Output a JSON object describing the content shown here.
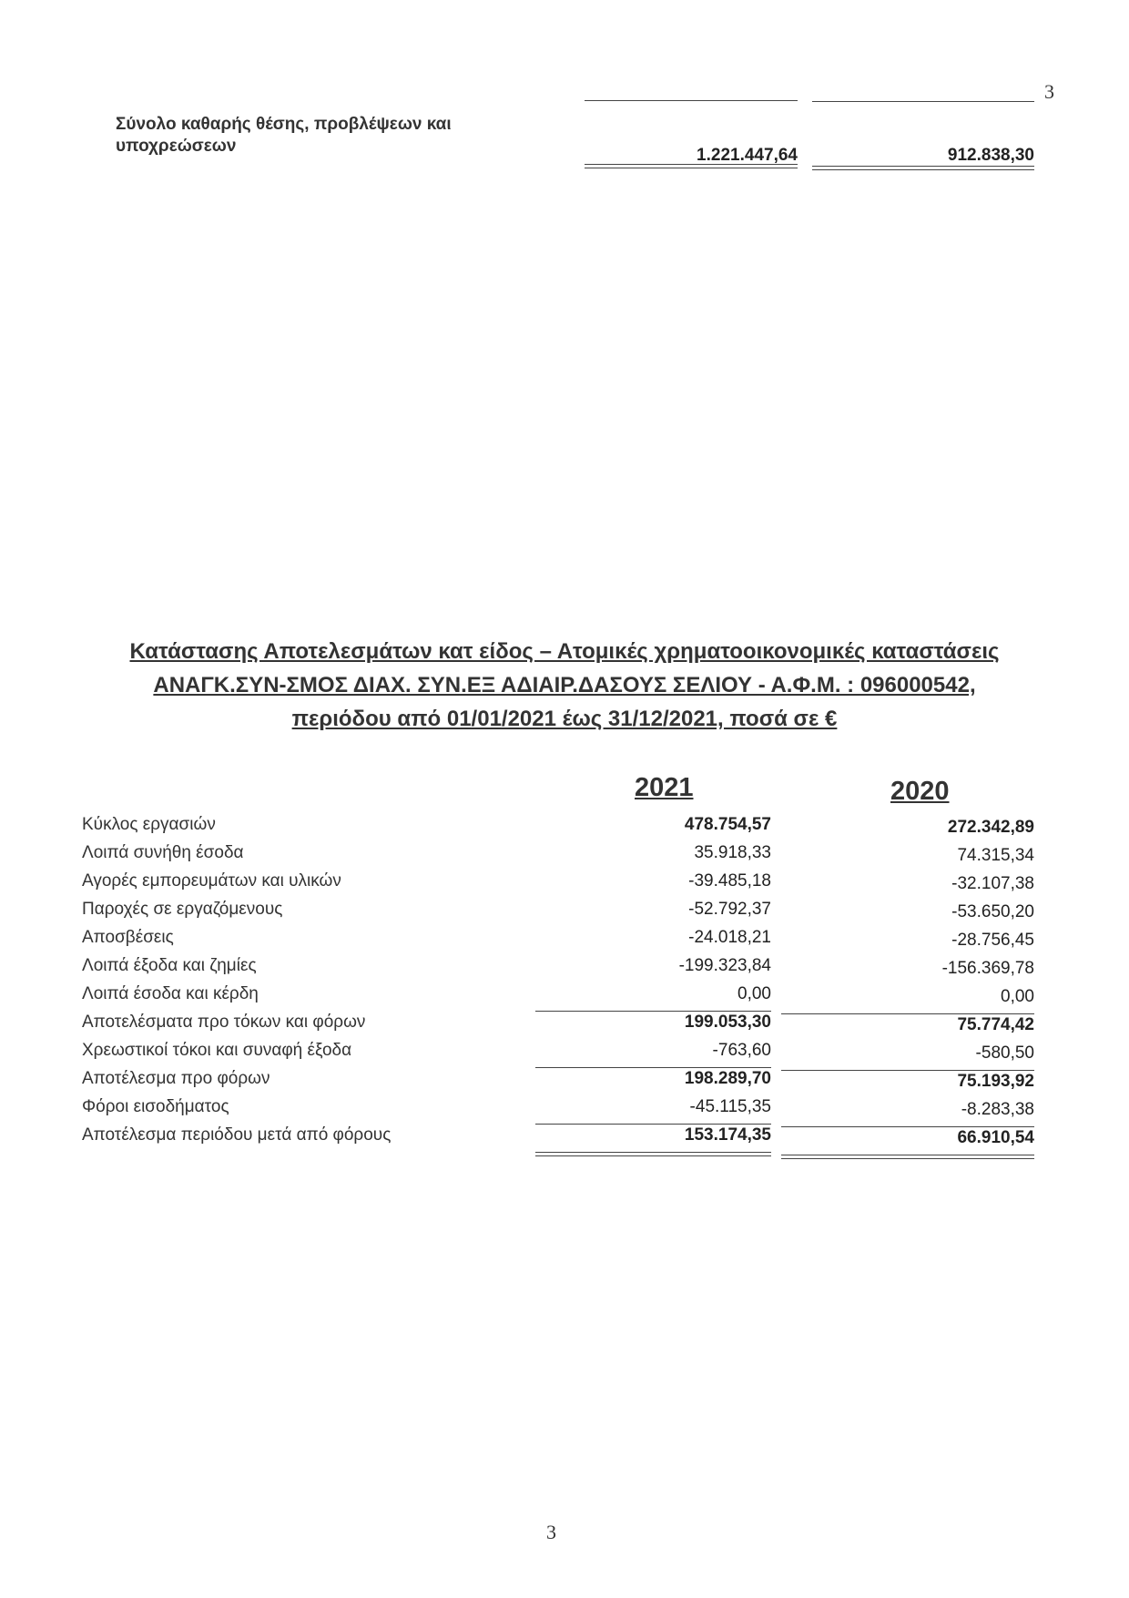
{
  "page_number_top": "3",
  "page_number_bottom": "3",
  "balance_total": {
    "label_line1": "Σύνολο καθαρής θέσης, προβλέψεων και",
    "label_line2": "υποχρεώσεων",
    "value_2021": "1.221.447,64",
    "value_2020": "912.838,30"
  },
  "title": {
    "line1": "Κατάστασης Αποτελεσμάτων κατ είδος – Ατομικές χρηματοοικονομικές καταστάσεις",
    "line2": "ΑΝΑΓΚ.ΣΥΝ-ΣΜΟΣ ΔΙΑΧ. ΣΥΝ.ΕΞ ΑΔΙΑΙΡ.ΔΑΣΟΥΣ ΣΕΛΙΟΥ - Α.Φ.Μ. : 096000542,",
    "line3": "περιόδου από 01/01/2021 έως 31/12/2021, ποσά σε €"
  },
  "table": {
    "columns": [
      "2021",
      "2020"
    ],
    "rows": [
      {
        "label": "Κύκλος εργασιών",
        "v2021": "478.754,57",
        "v2020": "272.342,89",
        "bold": true
      },
      {
        "label": "Λοιπά συνήθη έσοδα",
        "v2021": "35.918,33",
        "v2020": "74.315,34"
      },
      {
        "label": "Αγορές εμπορευμάτων και υλικών",
        "v2021": "-39.485,18",
        "v2020": "-32.107,38"
      },
      {
        "label": "Παροχές σε εργαζόμενους",
        "v2021": "-52.792,37",
        "v2020": "-53.650,20"
      },
      {
        "label": "Αποσβέσεις",
        "v2021": "-24.018,21",
        "v2020": "-28.756,45"
      },
      {
        "label": "Λοιπά έξοδα και ζημίες",
        "v2021": "-199.323,84",
        "v2020": "-156.369,78"
      },
      {
        "label": "Λοιπά έσοδα και κέρδη",
        "v2021": "0,00",
        "v2020": "0,00"
      },
      {
        "label": "Αποτελέσματα προ τόκων και φόρων",
        "v2021": "199.053,30",
        "v2020": "75.774,42",
        "bold": true
      },
      {
        "label": "Χρεωστικοί τόκοι και συναφή έξοδα",
        "v2021": "-763,60",
        "v2020": "-580,50"
      },
      {
        "label": "Αποτέλεσμα προ φόρων",
        "v2021": "198.289,70",
        "v2020": "75.193,92",
        "bold": true
      },
      {
        "label": "Φόροι εισοδήματος",
        "v2021": "-45.115,35",
        "v2020": "-8.283,38"
      },
      {
        "label": "Αποτέλεσμα περιόδου μετά από φόρους",
        "v2021": "153.174,35",
        "v2020": "66.910,54",
        "bold": true
      }
    ]
  }
}
